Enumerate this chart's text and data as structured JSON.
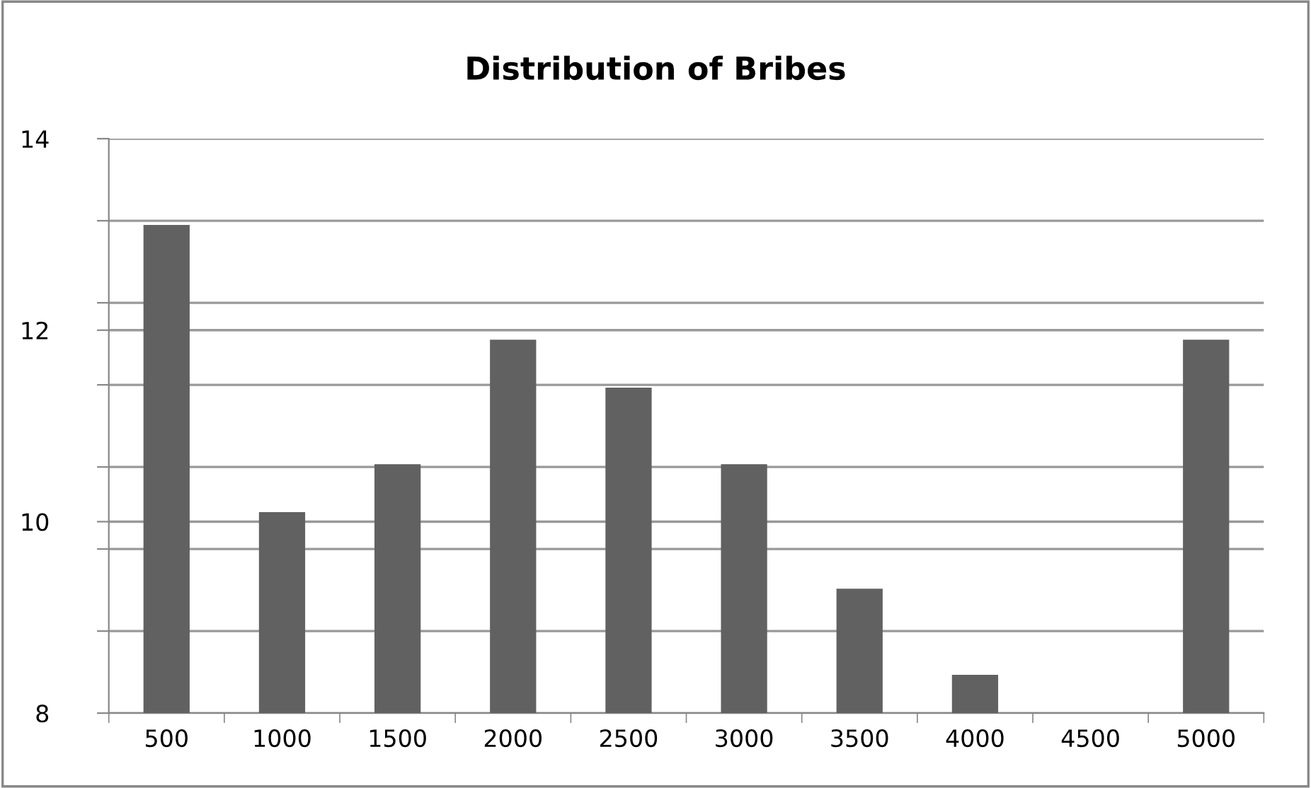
{
  "chart_data": {
    "type": "bar",
    "title": "Distribution of Bribes",
    "categories": [
      "500",
      "1000",
      "1500",
      "2000",
      "2500",
      "3000",
      "3500",
      "4000",
      "4500",
      "5000"
    ],
    "values": [
      13.1,
      10.1,
      10.6,
      11.9,
      11.4,
      10.6,
      9.3,
      8.4,
      null,
      11.9
    ],
    "color": "#616161",
    "ylim": [
      8,
      14
    ],
    "yticks": [
      8,
      {
        "value": 8.857,
        "label": null
      },
      {
        "value": 9.714,
        "label": null
      },
      10,
      {
        "value": 10.571,
        "label": null
      },
      {
        "value": 11.429,
        "label": null
      },
      12,
      {
        "value": 12.286,
        "label": null
      },
      {
        "value": 13.143,
        "label": null
      },
      14
    ],
    "grid": "y"
  }
}
